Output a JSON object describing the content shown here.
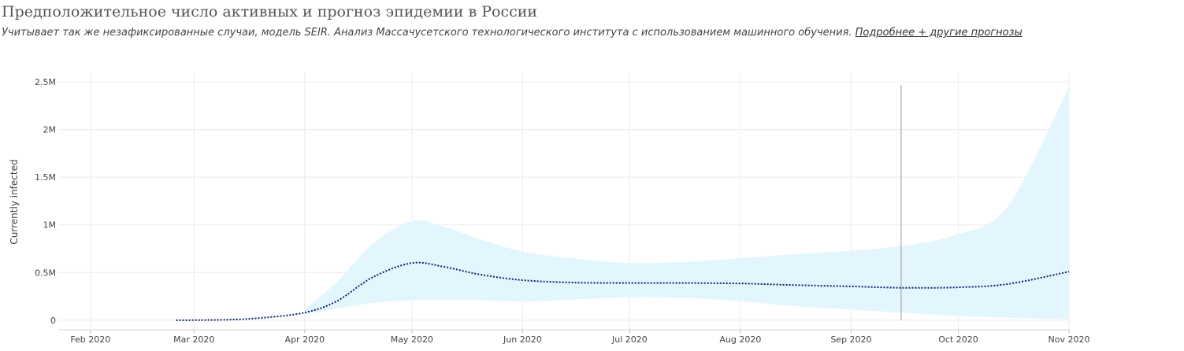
{
  "header": {
    "title": "Предположительное число активных и прогноз эпидемии в России",
    "subtitle": "Учитывает так же незафиксированные случаи, модель SEIR. Анализ Массачусетского технологического института с использованием машинного обучения.",
    "link_text": "Подробнее + другие прогнозы"
  },
  "chart_data": {
    "type": "line",
    "title": "",
    "xlabel": "",
    "ylabel": "Currently infected",
    "x_tick_labels": [
      "Feb 2020",
      "Mar 2020",
      "Apr 2020",
      "May 2020",
      "Jun 2020",
      "Jul 2020",
      "Aug 2020",
      "Sep 2020",
      "Oct 2020",
      "Nov 2020"
    ],
    "x_tick_dates": [
      "2020-02-01",
      "2020-03-01",
      "2020-04-01",
      "2020-05-01",
      "2020-06-01",
      "2020-07-01",
      "2020-08-01",
      "2020-09-01",
      "2020-10-01",
      "2020-11-01"
    ],
    "y_tick_labels": [
      "0",
      "0.5M",
      "1M",
      "1.5M",
      "2M",
      "2.5M"
    ],
    "y_tick_values": [
      0,
      500000,
      1000000,
      1500000,
      2000000,
      2500000
    ],
    "xlim": [
      "2020-01-23",
      "2020-11-01"
    ],
    "ylim": [
      -100000,
      2500000
    ],
    "grid": true,
    "vertical_marker": "2020-09-15",
    "colors": {
      "forecast_line": "#0d1f6e",
      "band": "#e3f6fd",
      "marker": "#999999",
      "grid": "#ececec"
    },
    "series": [
      {
        "values": [
          {
            "x": "2020-02-25",
            "y": 0
          },
          {
            "x": "2020-03-10",
            "y": 5000
          },
          {
            "x": "2020-03-20",
            "y": 25000
          },
          {
            "x": "2020-04-01",
            "y": 80000
          },
          {
            "x": "2020-04-10",
            "y": 200000
          },
          {
            "x": "2020-04-20",
            "y": 450000
          },
          {
            "x": "2020-05-01",
            "y": 600000
          },
          {
            "x": "2020-05-10",
            "y": 560000
          },
          {
            "x": "2020-05-20",
            "y": 480000
          },
          {
            "x": "2020-06-01",
            "y": 420000
          },
          {
            "x": "2020-06-15",
            "y": 395000
          },
          {
            "x": "2020-07-01",
            "y": 390000
          },
          {
            "x": "2020-07-15",
            "y": 390000
          },
          {
            "x": "2020-08-01",
            "y": 385000
          },
          {
            "x": "2020-08-15",
            "y": 370000
          },
          {
            "x": "2020-09-01",
            "y": 355000
          },
          {
            "x": "2020-09-15",
            "y": 340000
          },
          {
            "x": "2020-10-01",
            "y": 345000
          },
          {
            "x": "2020-10-15",
            "y": 380000
          },
          {
            "x": "2020-11-01",
            "y": 510000
          }
        ]
      }
    ],
    "band": [
      {
        "x": "2020-04-01",
        "lower": 60000,
        "upper": 110000
      },
      {
        "x": "2020-04-10",
        "lower": 120000,
        "upper": 400000
      },
      {
        "x": "2020-04-20",
        "lower": 180000,
        "upper": 800000
      },
      {
        "x": "2020-05-01",
        "lower": 210000,
        "upper": 1040000
      },
      {
        "x": "2020-05-10",
        "lower": 215000,
        "upper": 980000
      },
      {
        "x": "2020-05-20",
        "lower": 210000,
        "upper": 850000
      },
      {
        "x": "2020-06-01",
        "lower": 195000,
        "upper": 720000
      },
      {
        "x": "2020-06-15",
        "lower": 215000,
        "upper": 650000
      },
      {
        "x": "2020-07-01",
        "lower": 240000,
        "upper": 600000
      },
      {
        "x": "2020-07-15",
        "lower": 235000,
        "upper": 610000
      },
      {
        "x": "2020-08-01",
        "lower": 200000,
        "upper": 650000
      },
      {
        "x": "2020-08-15",
        "lower": 150000,
        "upper": 690000
      },
      {
        "x": "2020-09-01",
        "lower": 110000,
        "upper": 730000
      },
      {
        "x": "2020-09-15",
        "lower": 80000,
        "upper": 780000
      },
      {
        "x": "2020-10-01",
        "lower": 45000,
        "upper": 900000
      },
      {
        "x": "2020-10-15",
        "lower": 25000,
        "upper": 1200000
      },
      {
        "x": "2020-11-01",
        "lower": 10000,
        "upper": 2450000
      }
    ]
  }
}
